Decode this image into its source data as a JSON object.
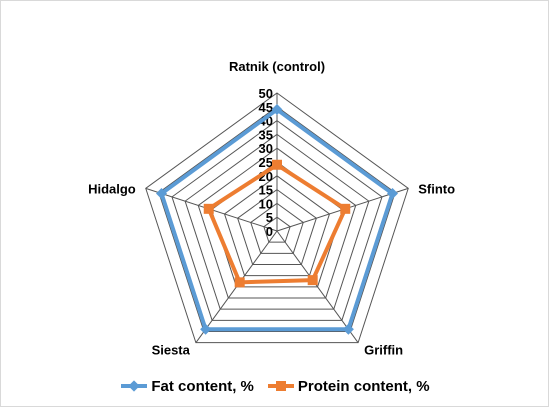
{
  "chart_data": {
    "type": "radar",
    "categories": [
      "Ratnik  (control)",
      "Sfinto",
      "Griffin",
      "Siesta",
      "Hidalgo"
    ],
    "rticks": [
      "0",
      "5",
      "10",
      "15",
      "20",
      "25",
      "30",
      "35",
      "40",
      "45",
      "50"
    ],
    "rlim": [
      0,
      50
    ],
    "grid": true,
    "legend_position": "bottom",
    "series": [
      {
        "name": "Fat content, %",
        "color": "#5b9bd5",
        "marker": "diamond",
        "values": [
          44,
          44,
          44,
          44,
          44
        ]
      },
      {
        "name": "Protein content, %",
        "color": "#ed7d31",
        "marker": "square",
        "values": [
          24,
          26,
          22,
          23,
          26
        ]
      }
    ]
  }
}
